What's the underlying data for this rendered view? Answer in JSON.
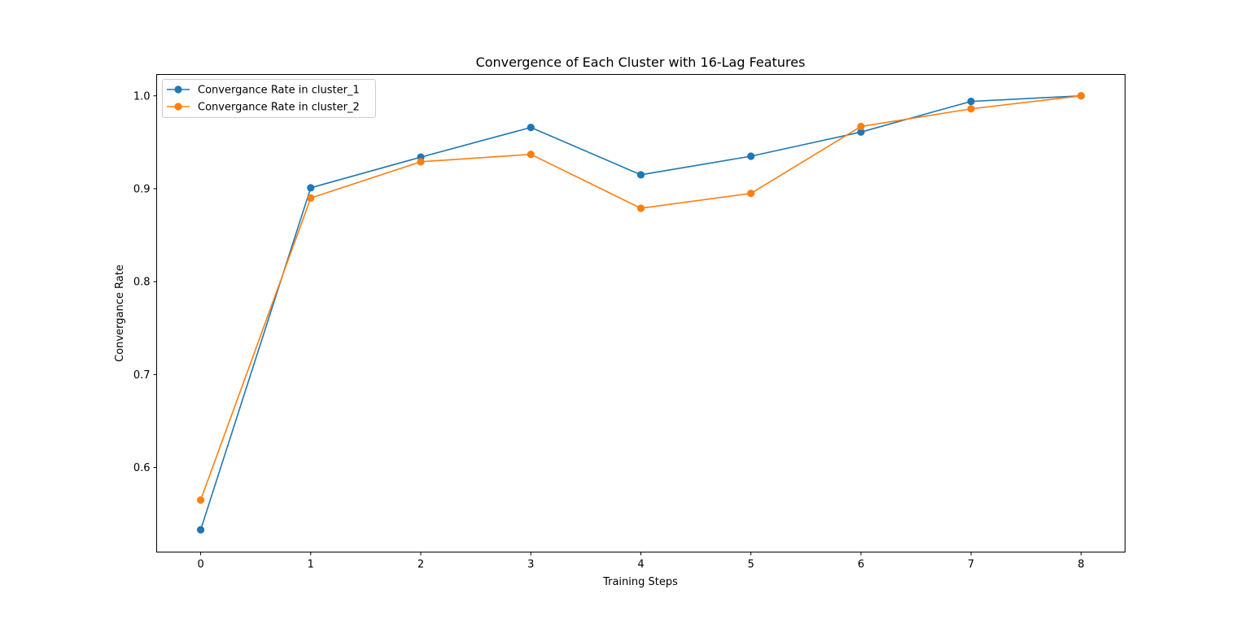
{
  "chart_data": {
    "type": "line",
    "title": "Convergence of Each Cluster with 16-Lag Features",
    "xlabel": "Training Steps",
    "ylabel": "Convergance Rate",
    "x": [
      0,
      1,
      2,
      3,
      4,
      5,
      6,
      7,
      8
    ],
    "xlim": [
      -0.4,
      8.4
    ],
    "ylim": [
      0.509,
      1.023
    ],
    "xticks": [
      "0",
      "1",
      "2",
      "3",
      "4",
      "5",
      "6",
      "7",
      "8"
    ],
    "yticks": [
      "0.6",
      "0.7",
      "0.8",
      "0.9",
      "1.0"
    ],
    "ytick_values": [
      0.6,
      0.7,
      0.8,
      0.9,
      1.0
    ],
    "grid": false,
    "legend_position": "top-left",
    "series": [
      {
        "name": "Convergance Rate in cluster_1",
        "color": "#1f77b4",
        "marker": "circle",
        "values": [
          0.533,
          0.901,
          0.934,
          0.966,
          0.915,
          0.935,
          0.961,
          0.994,
          1.0
        ]
      },
      {
        "name": "Convergance Rate in cluster_2",
        "color": "#ff7f0e",
        "marker": "circle",
        "values": [
          0.565,
          0.89,
          0.929,
          0.937,
          0.879,
          0.895,
          0.967,
          0.986,
          1.0
        ]
      }
    ]
  }
}
